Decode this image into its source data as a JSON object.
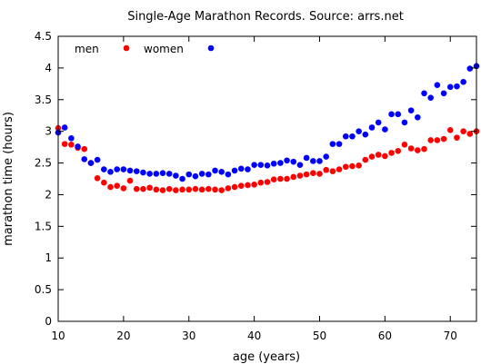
{
  "chart_data": {
    "type": "scatter",
    "title": "Single-Age Marathon Records. Source: arrs.net",
    "xlabel": "age (years)",
    "ylabel": "marathon time (hours)",
    "xlim": [
      10,
      74
    ],
    "ylim": [
      0,
      4.5
    ],
    "xticks": [
      "10",
      "20",
      "30",
      "40",
      "50",
      "60",
      "70"
    ],
    "yticks": [
      "0",
      "0.5",
      "1",
      "1.5",
      "2",
      "2.5",
      "3",
      "3.5",
      "4",
      "4.5"
    ],
    "grid": false,
    "legend_position": "top-left",
    "series": [
      {
        "name": "men",
        "color": "#ff0000",
        "x": [
          10,
          11,
          12,
          13,
          14,
          15,
          16,
          17,
          18,
          19,
          20,
          21,
          22,
          23,
          24,
          25,
          26,
          27,
          28,
          29,
          30,
          31,
          32,
          33,
          34,
          35,
          36,
          37,
          38,
          39,
          40,
          41,
          42,
          43,
          44,
          45,
          46,
          47,
          48,
          49,
          50,
          51,
          52,
          53,
          54,
          55,
          56,
          57,
          58,
          59,
          60,
          61,
          62,
          63,
          64,
          65,
          66,
          67,
          68,
          69,
          70,
          71,
          72,
          73,
          74
        ],
        "y": [
          3.05,
          2.8,
          2.79,
          2.74,
          2.72,
          2.5,
          2.26,
          2.19,
          2.12,
          2.14,
          2.1,
          2.22,
          2.09,
          2.09,
          2.11,
          2.08,
          2.07,
          2.09,
          2.07,
          2.08,
          2.08,
          2.09,
          2.08,
          2.09,
          2.08,
          2.07,
          2.1,
          2.12,
          2.14,
          2.15,
          2.16,
          2.19,
          2.2,
          2.24,
          2.25,
          2.25,
          2.28,
          2.3,
          2.32,
          2.34,
          2.33,
          2.39,
          2.37,
          2.4,
          2.44,
          2.45,
          2.46,
          2.55,
          2.6,
          2.63,
          2.61,
          2.66,
          2.69,
          2.79,
          2.73,
          2.7,
          2.72,
          2.86,
          2.86,
          2.88,
          3.02,
          2.9,
          3.0,
          2.96,
          3.0
        ]
      },
      {
        "name": "women",
        "color": "#0000ff",
        "x": [
          10,
          11,
          12,
          13,
          14,
          15,
          16,
          17,
          18,
          19,
          20,
          21,
          22,
          23,
          24,
          25,
          26,
          27,
          28,
          29,
          30,
          31,
          32,
          33,
          34,
          35,
          36,
          37,
          38,
          39,
          40,
          41,
          42,
          43,
          44,
          45,
          46,
          47,
          48,
          49,
          50,
          51,
          52,
          53,
          54,
          55,
          56,
          57,
          58,
          59,
          60,
          61,
          62,
          63,
          64,
          65,
          66,
          67,
          68,
          69,
          70,
          71,
          72,
          73,
          74
        ],
        "y": [
          2.98,
          3.06,
          2.89,
          2.76,
          2.56,
          2.5,
          2.55,
          2.4,
          2.36,
          2.4,
          2.4,
          2.38,
          2.37,
          2.35,
          2.33,
          2.33,
          2.34,
          2.33,
          2.3,
          2.25,
          2.32,
          2.29,
          2.33,
          2.32,
          2.38,
          2.36,
          2.32,
          2.38,
          2.41,
          2.4,
          2.47,
          2.47,
          2.46,
          2.49,
          2.5,
          2.54,
          2.52,
          2.47,
          2.58,
          2.53,
          2.53,
          2.6,
          2.8,
          2.8,
          2.92,
          2.92,
          3.0,
          2.95,
          3.06,
          3.14,
          3.03,
          3.27,
          3.27,
          3.14,
          3.33,
          3.22,
          3.6,
          3.53,
          3.73,
          3.6,
          3.7,
          3.71,
          3.78,
          3.99,
          4.03
        ]
      }
    ]
  }
}
